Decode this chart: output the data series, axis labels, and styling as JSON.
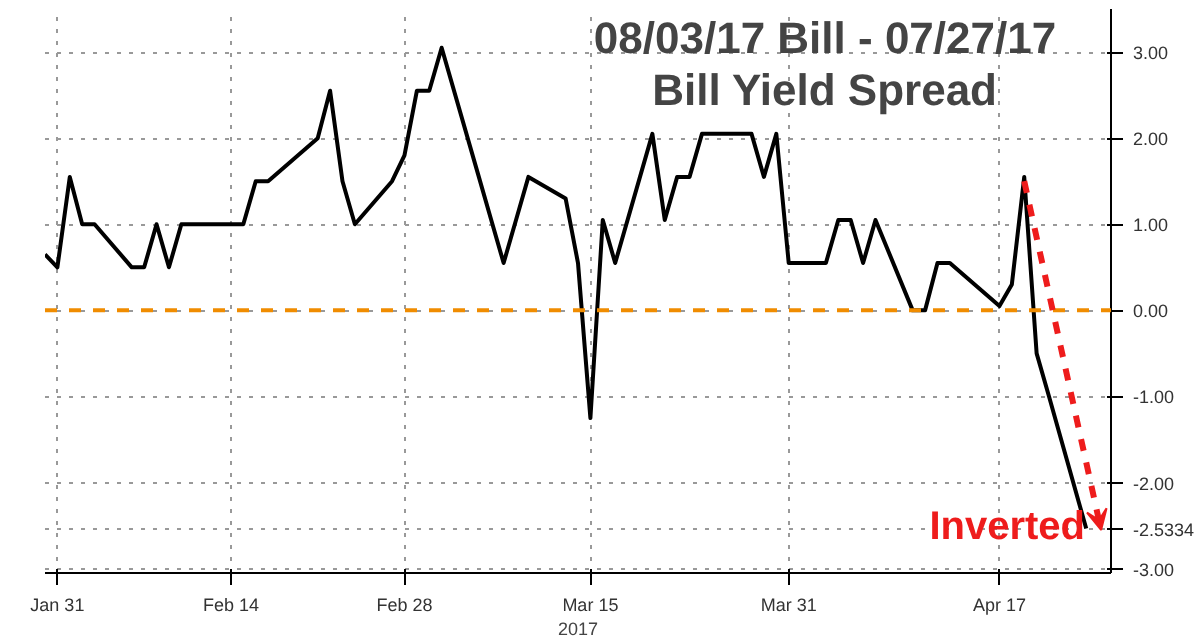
{
  "chart_data": {
    "type": "line",
    "title": "08/03/17 Bill - 07/27/17\nBill Yield Spread",
    "xlabel": "2017",
    "x": [
      "2017-01-30",
      "2017-01-31",
      "2017-02-01",
      "2017-02-02",
      "2017-02-03",
      "2017-02-06",
      "2017-02-07",
      "2017-02-08",
      "2017-02-09",
      "2017-02-10",
      "2017-02-13",
      "2017-02-14",
      "2017-02-15",
      "2017-02-16",
      "2017-02-17",
      "2017-02-21",
      "2017-02-22",
      "2017-02-23",
      "2017-02-24",
      "2017-02-27",
      "2017-02-28",
      "2017-03-01",
      "2017-03-02",
      "2017-03-03",
      "2017-03-06",
      "2017-03-07",
      "2017-03-08",
      "2017-03-09",
      "2017-03-10",
      "2017-03-13",
      "2017-03-14",
      "2017-03-15",
      "2017-03-16",
      "2017-03-17",
      "2017-03-20",
      "2017-03-21",
      "2017-03-22",
      "2017-03-23",
      "2017-03-24",
      "2017-03-27",
      "2017-03-28",
      "2017-03-29",
      "2017-03-30",
      "2017-03-31",
      "2017-04-03",
      "2017-04-04",
      "2017-04-05",
      "2017-04-06",
      "2017-04-07",
      "2017-04-10",
      "2017-04-11",
      "2017-04-12",
      "2017-04-13",
      "2017-04-17",
      "2017-04-18",
      "2017-04-19",
      "2017-04-20",
      "2017-04-21",
      "2017-04-24"
    ],
    "series": [
      {
        "color": "#000000",
        "values": [
          0.65,
          0.5,
          1.55,
          1.0,
          1.0,
          0.5,
          0.5,
          1.0,
          0.5,
          1.0,
          1.0,
          1.0,
          1.0,
          1.5,
          1.5,
          2.0,
          2.55,
          1.5,
          1.0,
          1.5,
          1.8,
          2.55,
          2.55,
          3.05,
          1.55,
          1.05,
          0.55,
          1.05,
          1.55,
          1.3,
          0.55,
          -1.25,
          1.05,
          0.55,
          2.05,
          1.05,
          1.55,
          1.55,
          2.05,
          2.05,
          2.05,
          1.55,
          2.05,
          0.55,
          0.55,
          1.05,
          1.05,
          0.55,
          1.05,
          0.0,
          0.0,
          0.55,
          0.55,
          0.05,
          0.3,
          1.55,
          -0.5,
          -1.0,
          -2.5334
        ]
      }
    ],
    "xlim": [
      "2017-01-30",
      "2017-04-26"
    ],
    "xticks": [
      {
        "value": "2017-01-31",
        "label": "Jan 31"
      },
      {
        "value": "2017-02-14",
        "label": "Feb 14"
      },
      {
        "value": "2017-02-28",
        "label": "Feb 28"
      },
      {
        "value": "2017-03-15",
        "label": "Mar 15"
      },
      {
        "value": "2017-03-31",
        "label": "Mar 31"
      },
      {
        "value": "2017-04-17",
        "label": "Apr 17"
      }
    ],
    "ylim": [
      -3.05,
      3.5
    ],
    "yticks": [
      {
        "value": -3,
        "label": "-3.00"
      },
      {
        "value": -2.5334,
        "label": "-2.5334"
      },
      {
        "value": -2,
        "label": "-2.00"
      },
      {
        "value": -1,
        "label": "-1.00"
      },
      {
        "value": 0,
        "label": "0.00"
      },
      {
        "value": 1,
        "label": "1.00"
      },
      {
        "value": 2,
        "label": "2.00"
      },
      {
        "value": 3,
        "label": "3.00"
      }
    ],
    "ref_lines": [
      {
        "axis": "y",
        "value": 0,
        "color": "#f08c00",
        "line_style": "dashed"
      }
    ],
    "annotations": [
      "Inverted"
    ],
    "grid": true,
    "line_style": "solid",
    "marker": "none"
  }
}
